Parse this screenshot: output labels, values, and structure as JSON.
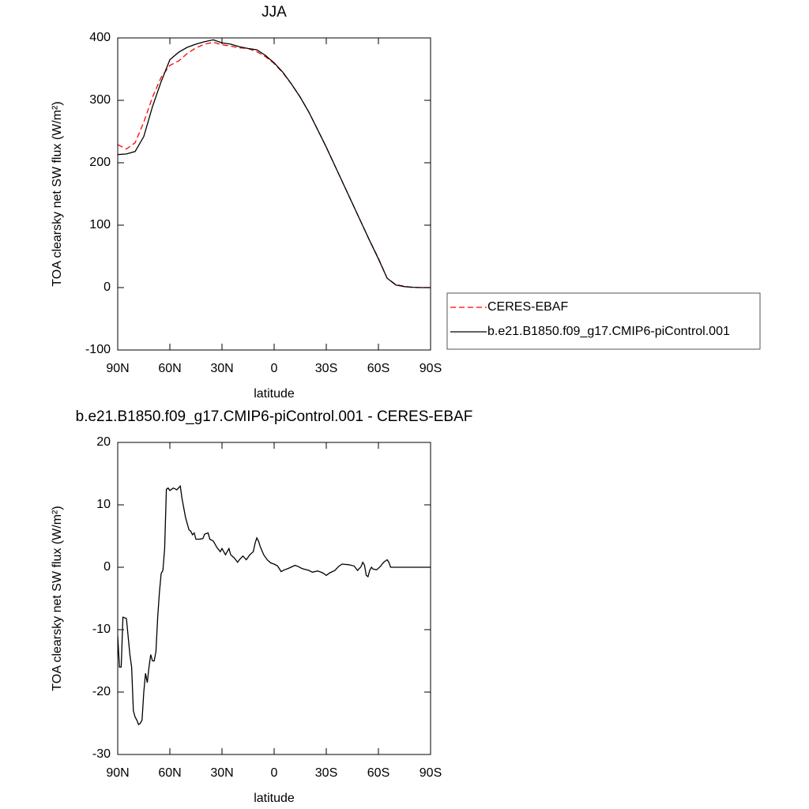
{
  "chart_data": [
    {
      "type": "line",
      "title": "JJA",
      "xlabel": "latitude",
      "ylabel": "TOA clearsky net SW flux (W/m²)",
      "x": [
        90,
        85,
        80,
        75,
        70,
        65,
        60,
        55,
        50,
        45,
        40,
        35,
        30,
        25,
        20,
        15,
        10,
        5,
        0,
        -5,
        -10,
        -15,
        -20,
        -25,
        -30,
        -35,
        -40,
        -45,
        -50,
        -55,
        -60,
        -65,
        -70,
        -75,
        -80,
        -85,
        -90
      ],
      "series": [
        {
          "name": "CERES-EBAF",
          "color": "#ff0000",
          "style": "dashed",
          "values": [
            229,
            222,
            232,
            265,
            305,
            337,
            356,
            363,
            375,
            384,
            390,
            393,
            389,
            387,
            384,
            383,
            378,
            370,
            359,
            344,
            326,
            305,
            281,
            253,
            225,
            195,
            165,
            135,
            105,
            75,
            47,
            15,
            5,
            2,
            0,
            0,
            0
          ]
        },
        {
          "name": "b.e21.B1850.f09_g17.CMIP6-piControl.001",
          "color": "#000000",
          "style": "solid",
          "values": [
            213,
            214,
            218,
            242,
            290,
            330,
            365,
            377,
            385,
            390,
            394,
            397,
            392,
            390,
            386,
            383,
            381,
            372,
            360,
            345,
            326,
            305,
            281,
            253,
            225,
            195,
            165,
            135,
            105,
            75,
            46,
            15,
            4,
            1.5,
            0.5,
            0,
            0
          ]
        }
      ],
      "xlim": [
        90,
        -90
      ],
      "xticks": [
        {
          "value": 90,
          "label": "90N"
        },
        {
          "value": 60,
          "label": "60N"
        },
        {
          "value": 30,
          "label": "30N"
        },
        0,
        {
          "value": -30,
          "label": "30S"
        },
        {
          "value": -60,
          "label": "60S"
        },
        {
          "value": -90,
          "label": "90S"
        }
      ],
      "ylim": [
        -100,
        400
      ],
      "yticks": [
        -100,
        0,
        100,
        200,
        300,
        400
      ],
      "legend": "right"
    },
    {
      "type": "line",
      "title": "b.e21.B1850.f09_g17.CMIP6-piControl.001 - CERES-EBAF",
      "xlabel": "latitude",
      "ylabel": "TOA clearsky net SW flux (W/m²)",
      "x": [
        90,
        89,
        88,
        87,
        85,
        83,
        82,
        81,
        80,
        79,
        78,
        77,
        76,
        75,
        74,
        73,
        72,
        71,
        70,
        69,
        68,
        67,
        66,
        65,
        64,
        63,
        62,
        61,
        60,
        58,
        56,
        54,
        53,
        51,
        50,
        49,
        48,
        47,
        46,
        45,
        43,
        41,
        40,
        38,
        37,
        35,
        33,
        31,
        30,
        28,
        26,
        25,
        23,
        21,
        20,
        18,
        16,
        14,
        12,
        11,
        10,
        9,
        8,
        6,
        4,
        2,
        0,
        -2,
        -4,
        -6,
        -8,
        -12,
        -14,
        -16,
        -20,
        -22,
        -25,
        -28,
        -30,
        -32,
        -35,
        -37,
        -39,
        -43,
        -46,
        -48,
        -50,
        -51,
        -52,
        -53,
        -54,
        -55,
        -56,
        -57,
        -59,
        -61,
        -63,
        -65,
        -66,
        -67,
        -70,
        -90
      ],
      "values": [
        -11,
        -16,
        -16,
        -8,
        -8.2,
        -14,
        -16,
        -23,
        -24,
        -24.5,
        -25.2,
        -25,
        -24.5,
        -20,
        -17,
        -18.5,
        -16,
        -14,
        -15,
        -15,
        -13.5,
        -8,
        -4,
        -1,
        -0.5,
        3,
        12.5,
        12.7,
        12.3,
        12.7,
        12.4,
        13,
        11,
        8,
        7,
        6,
        5.8,
        5.2,
        5.5,
        4.5,
        4.5,
        4.6,
        5.3,
        5.5,
        4.5,
        4.2,
        3.2,
        2.5,
        3,
        2,
        3,
        2,
        1.5,
        0.8,
        1.2,
        1.8,
        1.2,
        2,
        2.5,
        3.8,
        4.7,
        4.2,
        3.3,
        2,
        1.2,
        0.7,
        0.5,
        0.2,
        -0.7,
        -0.4,
        -0.2,
        0.3,
        0.1,
        -0.2,
        -0.5,
        -0.8,
        -0.6,
        -0.9,
        -1.3,
        -0.9,
        -0.5,
        0.1,
        0.5,
        0.4,
        0.2,
        -0.5,
        0.1,
        0.8,
        0.3,
        -1.3,
        -1.5,
        -0.5,
        0,
        -0.3,
        -0.4,
        0.1,
        0.8,
        1.2,
        0.8,
        0,
        0,
        0
      ],
      "color": "#000000",
      "xlim": [
        90,
        -90
      ],
      "xticks": [
        {
          "value": 90,
          "label": "90N"
        },
        {
          "value": 60,
          "label": "60N"
        },
        {
          "value": 30,
          "label": "30N"
        },
        0,
        {
          "value": -30,
          "label": "30S"
        },
        {
          "value": -60,
          "label": "60S"
        },
        {
          "value": -90,
          "label": "90S"
        }
      ],
      "ylim": [
        -30,
        20
      ],
      "yticks": [
        -30,
        -20,
        -10,
        0,
        10,
        20
      ]
    }
  ]
}
